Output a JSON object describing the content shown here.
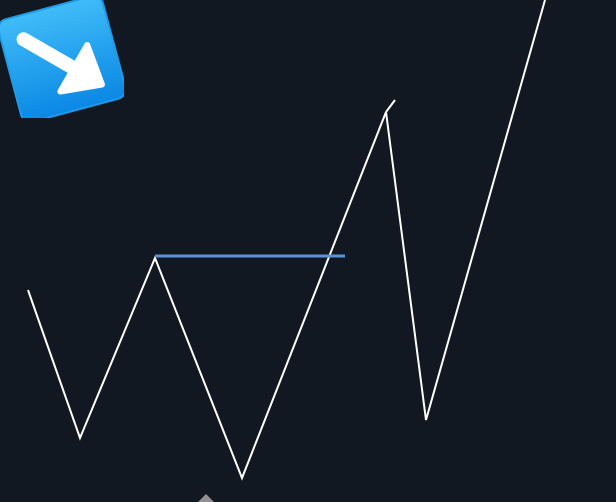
{
  "canvas": {
    "background": "#111821"
  },
  "zigzag": {
    "color": "#ffffff"
  },
  "neckline": {
    "color": "#5b93d6"
  },
  "badge": {
    "icon": "down-right-arrow-icon",
    "gradient_top": "#3cb8f6",
    "gradient_bottom": "#0a88e4",
    "border": "#1f9be8",
    "arrow_color": "#ffffff"
  },
  "marker": {
    "icon": "caret-up-icon",
    "color": "#8f8f94"
  }
}
